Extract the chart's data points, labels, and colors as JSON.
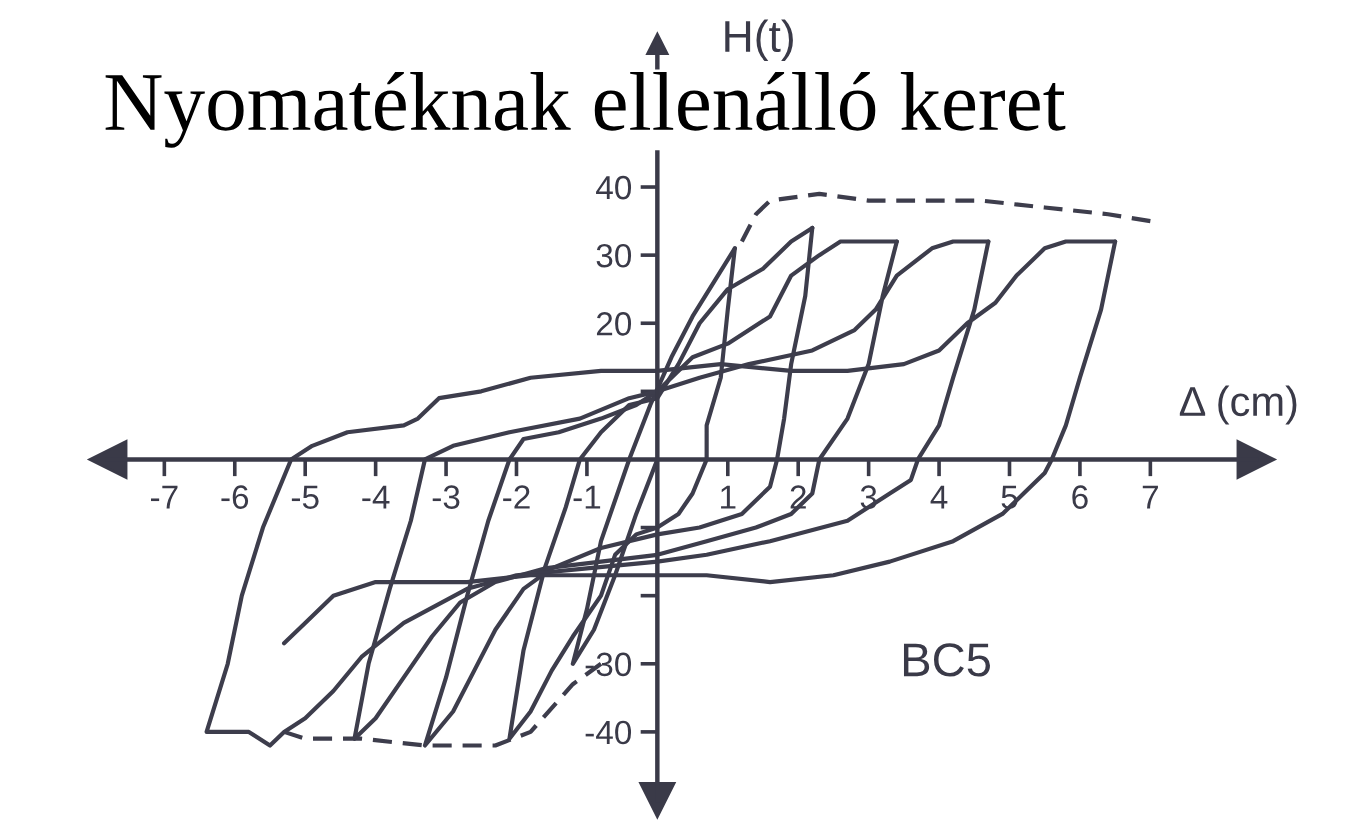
{
  "chart_data": {
    "type": "line",
    "title": "Nyomatéknak ellenálló keret",
    "xlabel": "Δ (cm)",
    "ylabel": "H(t)",
    "xlim": [
      -7.8,
      8.5
    ],
    "ylim": [
      -50,
      61
    ],
    "xticks": [
      -7,
      -6,
      -5,
      -4,
      -3,
      -2,
      -1,
      1,
      2,
      3,
      4,
      5,
      6,
      7
    ],
    "yticks": [
      -40,
      -30,
      {
        "value": -20,
        "label": null
      },
      {
        "value": -10,
        "label": null
      },
      {
        "value": 10,
        "label": null
      },
      20,
      30,
      40
    ],
    "annotations": [
      "BC5"
    ],
    "series": [
      {
        "color": "#3d3d4c",
        "x": [
          0,
          -0.3,
          -0.6,
          -0.9,
          -1.2,
          -1.0,
          -0.8,
          -0.4,
          -0.1,
          0.2,
          0.5,
          0.8,
          1.1
        ],
        "values": [
          0,
          -8,
          -17,
          -25,
          -30,
          -22,
          -12,
          0,
          8,
          15,
          21,
          26,
          31
        ]
      },
      {
        "color": "#3d3d4c",
        "x": [
          1.1,
          1.0,
          0.9,
          0.7,
          0.7,
          0.5,
          0.3,
          0,
          -0.3,
          -0.6,
          -0.8,
          -1.2,
          -1.5,
          -1.8,
          -2.1,
          -1.9,
          -1.6,
          -1.3,
          -1.1,
          -0.8,
          -0.4,
          0,
          0.3,
          0.6,
          1.0,
          1.5,
          1.9,
          2.2
        ],
        "values": [
          31,
          22,
          12,
          5,
          0,
          -5,
          -8,
          -10,
          -11,
          -14,
          -20,
          -26,
          -31,
          -37,
          -41,
          -28,
          -16,
          -7,
          0,
          4,
          8,
          9,
          14,
          20,
          25,
          28,
          32,
          34
        ]
      },
      {
        "color": "#3d3d4c",
        "x": [
          2.2,
          2.1,
          1.9,
          1.8,
          1.7,
          1.6,
          1.2,
          0.6,
          0,
          -0.8,
          -1.5,
          -1.9,
          -2.3,
          -2.6,
          -2.9,
          -3.3,
          -3.0,
          -2.7,
          -2.4,
          -2.1,
          -1.9,
          -1.4,
          -0.8,
          -0.3,
          0,
          0.5,
          1.0,
          1.6,
          1.9,
          2.3,
          2.6,
          3.4
        ],
        "values": [
          34,
          24,
          14,
          6,
          0,
          -4,
          -8,
          -10,
          -11,
          -13,
          -16,
          -19,
          -25,
          -31,
          -37,
          -42,
          -32,
          -20,
          -9,
          0,
          3,
          4,
          6,
          8,
          10,
          15,
          17,
          21,
          27,
          30,
          32,
          32
        ]
      },
      {
        "color": "#3d3d4c",
        "x": [
          3.4,
          3.2,
          3.0,
          2.7,
          2.3,
          2.2,
          1.9,
          1.4,
          0.7,
          0,
          -0.8,
          -1.6,
          -2.3,
          -2.8,
          -3.2,
          -3.6,
          -4.0,
          -4.3,
          -4.1,
          -3.8,
          -3.5,
          -3.3,
          -2.9,
          -2.1,
          -1.1,
          -0.4,
          0,
          0.6,
          1.3,
          2.2,
          2.8,
          3.1,
          3.4,
          3.9,
          4.2,
          4.7
        ],
        "values": [
          32,
          24,
          14,
          6,
          0,
          -5,
          -8,
          -10,
          -12,
          -14,
          -15,
          -16,
          -18,
          -21,
          -26,
          -32,
          -38,
          -41,
          -30,
          -19,
          -9,
          0,
          2,
          4,
          6,
          9,
          10,
          12,
          14,
          16,
          19,
          22,
          27,
          31,
          32,
          32
        ]
      },
      {
        "color": "#3d3d4c",
        "x": [
          4.7,
          4.5,
          4.2,
          4.0,
          3.7,
          3.6,
          3.3,
          2.7,
          1.6,
          0.7,
          0,
          -1.0,
          -2.0,
          -2.7,
          -3.6,
          -4.2,
          -4.6,
          -5.0,
          -5.3,
          -5.5,
          -5.8,
          -6.4,
          -6.1,
          -5.9,
          -5.6,
          -5.2,
          -4.9,
          -4.4,
          -3.6,
          -3.4,
          -3.1,
          -2.5,
          -1.8,
          -0.8,
          0,
          0.9,
          1.9,
          2.7,
          3.5,
          4.0,
          4.4,
          4.8,
          5.1,
          5.5,
          5.8,
          6.5
        ],
        "values": [
          32,
          22,
          12,
          5,
          0,
          -3,
          -5,
          -9,
          -12,
          -14,
          -15,
          -16,
          -17,
          -19,
          -24,
          -29,
          -34,
          -38,
          -40,
          -42,
          -40,
          -40,
          -30,
          -20,
          -10,
          0,
          2,
          4,
          5,
          6,
          9,
          10,
          12,
          13,
          13,
          14,
          13,
          13,
          14,
          16,
          20,
          23,
          27,
          31,
          32,
          32
        ]
      },
      {
        "color": "#3d3d4c",
        "x": [
          6.5,
          6.3,
          6.0,
          5.8,
          5.6,
          5.5,
          5.2,
          4.9,
          4.2,
          3.3,
          2.5,
          1.6,
          0.7,
          0,
          -0.8,
          -1.8,
          -2.7,
          -3.6,
          -4.0,
          -4.6,
          -5.0,
          -5.3
        ],
        "values": [
          32,
          22,
          12,
          5,
          0,
          -2,
          -5,
          -8,
          -12,
          -15,
          -17,
          -18,
          -17,
          -17,
          -17,
          -17,
          -18,
          -18,
          -18,
          -20,
          -24,
          -27
        ]
      },
      {
        "color": "#3d3d4c",
        "line_style": "dashed",
        "x": [
          1.2,
          1.4,
          1.6,
          2.3,
          3.0,
          3.7,
          4.6,
          5.5,
          6.4,
          7.0
        ],
        "values": [
          32,
          36,
          38,
          39,
          38,
          38,
          38,
          37,
          36,
          35
        ]
      },
      {
        "color": "#3d3d4c",
        "line_style": "dashed",
        "x": [
          -5.3,
          -5.0,
          -4.2,
          -3.3,
          -2.3,
          -1.8,
          -1.2,
          -0.8
        ],
        "values": [
          -40,
          -41,
          -41,
          -42,
          -42,
          -40,
          -33,
          -30
        ]
      }
    ]
  }
}
